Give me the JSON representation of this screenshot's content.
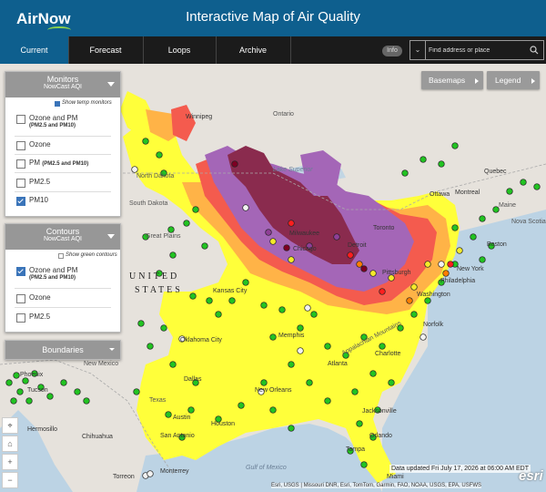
{
  "header": {
    "logo_text": "AirNow",
    "title": "Interactive Map of Air Quality"
  },
  "nav": {
    "tabs": [
      {
        "label": "Current",
        "active": true
      },
      {
        "label": "Forecast",
        "active": false
      },
      {
        "label": "Loops",
        "active": false
      },
      {
        "label": "Archive",
        "active": false
      }
    ],
    "info_label": "Info",
    "search_placeholder": "Find address or place"
  },
  "panels": {
    "monitors": {
      "title": "Monitors",
      "subtitle": "NowCast AQI",
      "show_temp_label": "Show temp monitors",
      "options": [
        {
          "label": "Ozone and PM",
          "sub": "(PM2.5 and PM10)",
          "checked": false
        },
        {
          "label": "Ozone",
          "checked": false
        },
        {
          "label": "PM",
          "inline_sub": "(PM2.5 and PM10)",
          "checked": false
        },
        {
          "label": "PM2.5",
          "checked": false
        },
        {
          "label": "PM10",
          "checked": true
        }
      ]
    },
    "contours": {
      "title": "Contours",
      "subtitle": "NowCast AQI",
      "show_green_label": "Show green contours",
      "options": [
        {
          "label": "Ozone and PM",
          "sub": "(PM2.5 and PM10)",
          "checked": true
        },
        {
          "label": "Ozone",
          "checked": false
        },
        {
          "label": "PM2.5",
          "checked": false
        }
      ]
    },
    "boundaries": {
      "title": "Boundaries"
    }
  },
  "map_buttons": {
    "basemaps": "Basemaps",
    "legend": "Legend"
  },
  "map_labels": {
    "cities": [
      "Winnipeg",
      "Ottawa",
      "Montreal",
      "Quebec",
      "Chicago",
      "Detroit",
      "Toronto",
      "Milwaukee",
      "Pittsburgh",
      "Washington",
      "Philadelphia",
      "New York",
      "Boston",
      "Norfolk",
      "Jacksonville",
      "Orlando",
      "Tampa",
      "Miami",
      "Dallas",
      "Houston",
      "Austin",
      "San Antonio",
      "Kansas City",
      "Memphis",
      "Oklahoma City",
      "Tucson",
      "Phoenix",
      "Hermosillo",
      "Chihuahua",
      "Monterrey",
      "Torreon",
      "Atlanta",
      "Charlotte",
      "New Orleans"
    ],
    "regions": [
      "Ontario",
      "North Dakota",
      "South Dakota",
      "Great Plains",
      "UNITED",
      "STATES",
      "Texas",
      "New Mexico",
      "Appalachian Mountains",
      "Nova Scotia",
      "Maine"
    ],
    "water": [
      "Lake Superior",
      "Gulf of Mexico"
    ]
  },
  "colors": {
    "header_bg": "#0e5f8e",
    "nav_bg": "#1b1b1b",
    "aqi_good": "#00e400",
    "aqi_moderate": "#ffff00",
    "aqi_usg": "#ff7e00",
    "aqi_unhealthy": "#ff0000",
    "aqi_very_unhealthy": "#8f3f97",
    "aqi_hazardous": "#7e0023"
  },
  "footer": {
    "data_updated": "Data updated Fri July 17, 2026 at 06:00 AM EDT",
    "attribution": "Esri, USGS | Missouri DNR, Esri, TomTom, Garmin, FAO, NOAA, USGS, EPA, USFWS",
    "esri": "esri"
  }
}
